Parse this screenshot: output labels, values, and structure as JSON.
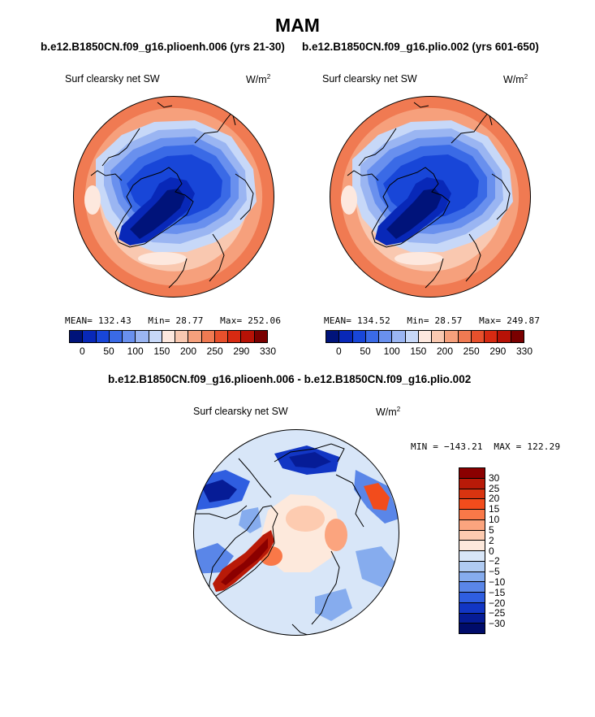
{
  "title": "MAM",
  "chart_data": [
    {
      "type": "heatmap",
      "projection": "polar stereographic (north pole)",
      "title": "b.e12.B1850CN.f09_g16.plioenh.006 (yrs 21-30)",
      "variable": "Surf clearsky net SW",
      "units": "W/m",
      "units_exp": "2",
      "stats": {
        "mean_label": "MEAN=",
        "mean": "132.43",
        "min_label": "Min=",
        "min": "28.77",
        "max_label": "Max=",
        "max": "252.06"
      },
      "colorbar": {
        "ticks": [
          "0",
          "50",
          "100",
          "150",
          "200",
          "250",
          "290",
          "330"
        ],
        "colors": [
          "#00137a",
          "#0828b8",
          "#1846d8",
          "#3a6ae6",
          "#6990ee",
          "#9ab5f2",
          "#c7d8f8",
          "#fde8de",
          "#f9c8b0",
          "#f6a07c",
          "#f07a52",
          "#e8502c",
          "#d72a12",
          "#b71206",
          "#7a0000"
        ]
      }
    },
    {
      "type": "heatmap",
      "projection": "polar stereographic (north pole)",
      "title": "b.e12.B1850CN.f09_g16.plio.002 (yrs 601-650)",
      "variable": "Surf clearsky net SW",
      "units": "W/m",
      "units_exp": "2",
      "stats": {
        "mean_label": "MEAN=",
        "mean": "134.52",
        "min_label": "Min=",
        "min": "28.57",
        "max_label": "Max=",
        "max": "249.87"
      },
      "colorbar": {
        "ticks": [
          "0",
          "50",
          "100",
          "150",
          "200",
          "250",
          "290",
          "330"
        ],
        "colors": [
          "#00137a",
          "#0828b8",
          "#1846d8",
          "#3a6ae6",
          "#6990ee",
          "#9ab5f2",
          "#c7d8f8",
          "#fde8de",
          "#f9c8b0",
          "#f6a07c",
          "#f07a52",
          "#e8502c",
          "#d72a12",
          "#b71206",
          "#7a0000"
        ]
      }
    },
    {
      "type": "heatmap",
      "projection": "polar stereographic (north pole)",
      "title": "b.e12.B1850CN.f09_g16.plioenh.006 - b.e12.B1850CN.f09_g16.plio.002",
      "variable": "Surf clearsky net SW",
      "units": "W/m",
      "units_exp": "2",
      "stats": {
        "min_label": "MIN =",
        "min": "−143.21",
        "max_label": "MAX =",
        "max": "122.29"
      },
      "colorbar": {
        "ticks": [
          "30",
          "25",
          "20",
          "15",
          "10",
          "5",
          "2",
          "0",
          "−2",
          "−5",
          "−10",
          "−15",
          "−20",
          "−25",
          "−30"
        ],
        "colors": [
          "#8b0000",
          "#b81a08",
          "#d93410",
          "#f24c1c",
          "#f97848",
          "#fba47e",
          "#fdcbb0",
          "#fde9dc",
          "#d8e6f8",
          "#b0cbf2",
          "#86acee",
          "#5a86e8",
          "#2f5ee0",
          "#1236c4",
          "#061c96",
          "#000c6a"
        ]
      }
    }
  ]
}
